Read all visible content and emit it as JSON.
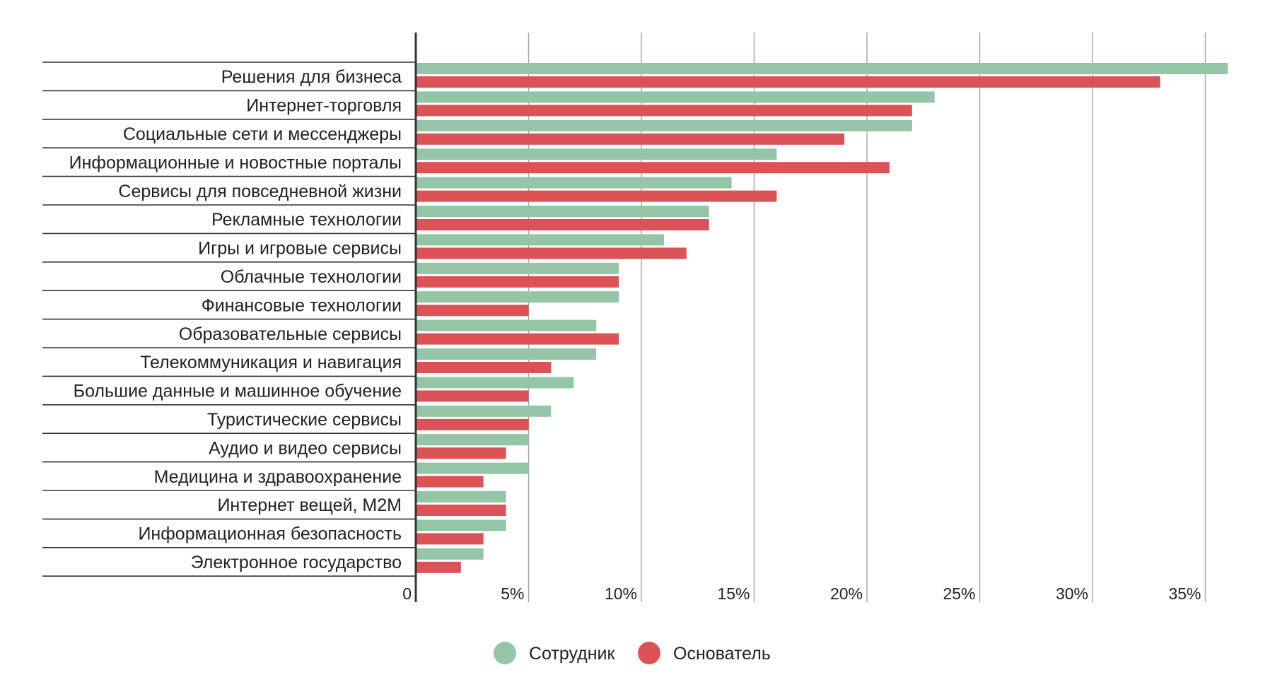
{
  "chart_data": {
    "type": "bar",
    "orientation": "horizontal",
    "title": "",
    "xlabel": "",
    "ylabel": "",
    "xlim": [
      0,
      36
    ],
    "grid": true,
    "legend_position": "bottom",
    "categories": [
      "Решения для бизнеса",
      "Интернет-торговля",
      "Социальные сети и мессенджеры",
      "Информационные и новостные порталы",
      "Сервисы для повседневной жизни",
      "Рекламные технологии",
      "Игры и игровые сервисы",
      "Облачные технологии",
      "Финансовые технологии",
      "Образовательные сервисы",
      "Телекоммуникация и навигация",
      "Большие данные и машинное обучение",
      "Туристические сервисы",
      "Аудио и видео сервисы",
      "Медицина и здравоохранение",
      "Интернет вещей, M2M",
      "Информационная безопасность",
      "Электронное государство"
    ],
    "ticks": [
      0,
      5,
      10,
      15,
      20,
      25,
      30,
      35
    ],
    "tick_labels": [
      "0",
      "5%",
      "10%",
      "15%",
      "20%",
      "25%",
      "30%",
      "35%"
    ],
    "series": [
      {
        "name": "Сотрудник",
        "color": "#93c5a6",
        "values": [
          36,
          23,
          22,
          16,
          14,
          13,
          11,
          9,
          9,
          8,
          8,
          7,
          6,
          5,
          5,
          4,
          4,
          3
        ]
      },
      {
        "name": "Основатель",
        "color": "#db5257",
        "values": [
          33,
          22,
          19,
          21,
          16,
          13,
          12,
          9,
          5,
          9,
          6,
          5,
          5,
          4,
          3,
          4,
          3,
          2
        ]
      }
    ]
  }
}
